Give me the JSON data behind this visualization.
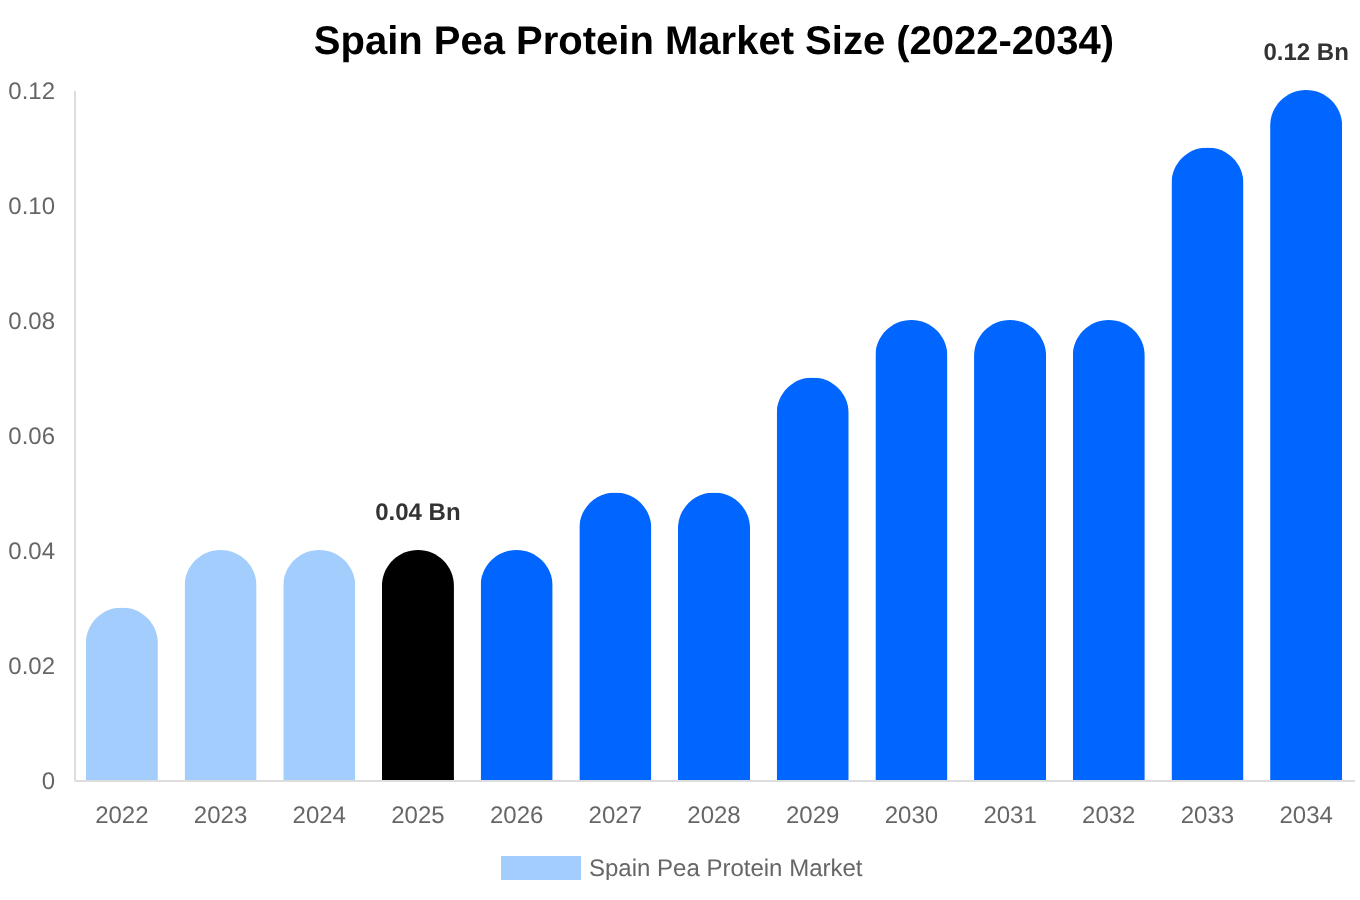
{
  "chart_data": {
    "type": "bar",
    "title": "Spain Pea Protein Market Size (2022-2034)",
    "categories": [
      "2022",
      "2023",
      "2024",
      "2025",
      "2026",
      "2027",
      "2028",
      "2029",
      "2030",
      "2031",
      "2032",
      "2033",
      "2034"
    ],
    "series": [
      {
        "name": "Spain Pea Protein Market",
        "color": "#a3cdfd",
        "values": [
          0.03,
          0.04,
          0.04,
          0.04,
          0.04,
          0.05,
          0.05,
          0.07,
          0.08,
          0.08,
          0.08,
          0.11,
          0.12
        ],
        "colors": [
          "#a3cdfd",
          "#a3cdfd",
          "#a3cdfd",
          "#000000",
          "#0066ff",
          "#0066ff",
          "#0066ff",
          "#0066ff",
          "#0066ff",
          "#0066ff",
          "#0066ff",
          "#0066ff",
          "#0066ff"
        ],
        "value_labels": [
          null,
          null,
          null,
          "0.04 Bn",
          null,
          null,
          null,
          null,
          null,
          null,
          null,
          null,
          "0.12 Bn"
        ]
      }
    ],
    "ylim": [
      0,
      0.12
    ],
    "yticks": [
      0,
      0.02,
      0.04,
      0.06,
      0.08,
      {
        "value": 0.1,
        "label": "0.10"
      },
      0.12
    ],
    "grid": false,
    "legend": "bottom"
  }
}
